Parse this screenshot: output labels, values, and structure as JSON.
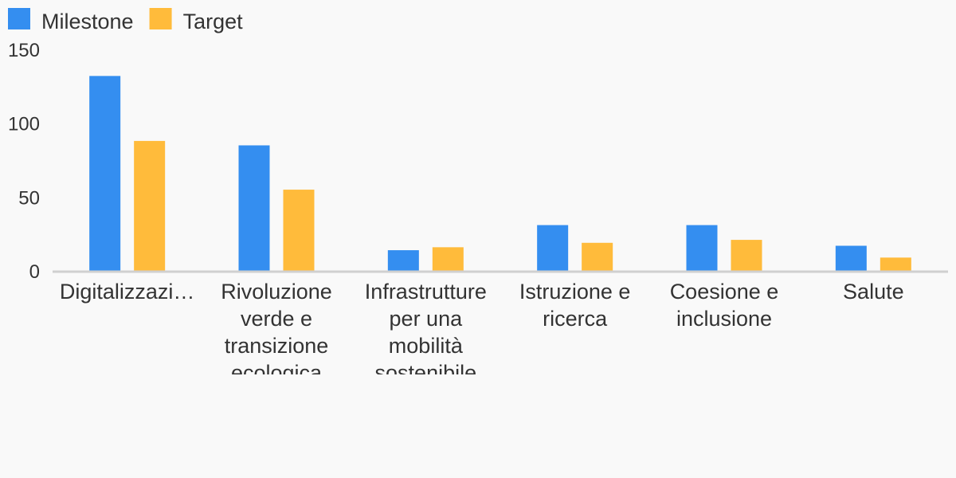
{
  "chart_data": {
    "type": "bar",
    "categories": [
      "Digitalizzazi…",
      "Rivoluzione verde e transizione ecologica",
      "Infrastrutture per una mobilità sostenibile",
      "Istruzione e ricerca",
      "Coesione e inclusione",
      "Salute"
    ],
    "category_lines": [
      [
        "Digitalizzazi…"
      ],
      [
        "Rivoluzione",
        "verde e",
        "transizione",
        "ecologica"
      ],
      [
        "Infrastrutture",
        "per una",
        "mobilità",
        "sostenibile"
      ],
      [
        "Istruzione e",
        "ricerca"
      ],
      [
        "Coesione e",
        "inclusione"
      ],
      [
        "Salute"
      ]
    ],
    "series": [
      {
        "name": "Milestone",
        "color": "#348ef0",
        "values": [
          132,
          85,
          14,
          31,
          31,
          17
        ]
      },
      {
        "name": "Target",
        "color": "#ffbb3b",
        "values": [
          88,
          55,
          16,
          19,
          21,
          9
        ]
      }
    ],
    "yticks": [
      "0",
      "50",
      "100",
      "150"
    ],
    "ylim": [
      0,
      150
    ],
    "legend_position": "top-left",
    "grid": false,
    "axis_color": "#d0d0d0"
  }
}
